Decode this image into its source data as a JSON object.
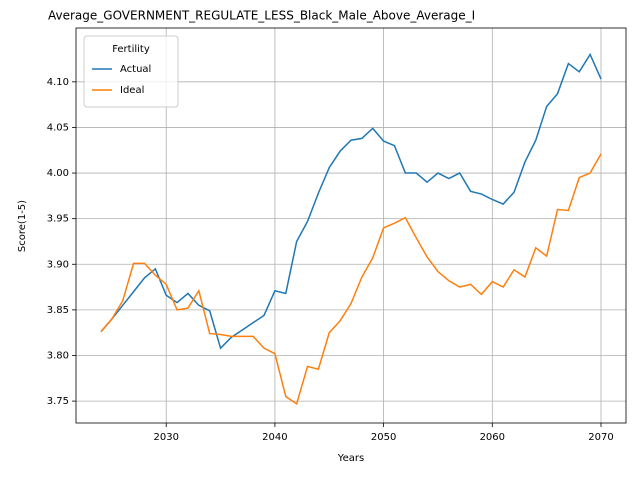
{
  "chart_data": {
    "type": "line",
    "title": "Average_GOVERNMENT_REGULATE_LESS_Black_Male_Above_Average_I",
    "xlabel": "Years",
    "ylabel": "Score(1-5)",
    "x": [
      2024,
      2025,
      2026,
      2027,
      2028,
      2029,
      2030,
      2031,
      2032,
      2033,
      2034,
      2035,
      2036,
      2037,
      2038,
      2039,
      2040,
      2041,
      2042,
      2043,
      2044,
      2045,
      2046,
      2047,
      2048,
      2049,
      2050,
      2051,
      2052,
      2053,
      2054,
      2055,
      2056,
      2057,
      2058,
      2059,
      2060,
      2061,
      2062,
      2063,
      2064,
      2065,
      2066,
      2067,
      2068,
      2069,
      2070
    ],
    "series": [
      {
        "name": "Actual",
        "color": "#1f77b4",
        "values": [
          3.826,
          3.84,
          3.855,
          3.87,
          3.885,
          3.895,
          3.866,
          3.858,
          3.868,
          3.855,
          3.849,
          3.808,
          3.82,
          3.828,
          3.836,
          3.844,
          3.871,
          3.868,
          3.925,
          3.947,
          3.978,
          4.006,
          4.024,
          4.036,
          4.038,
          4.049,
          4.035,
          4.03,
          4.0,
          4.0,
          3.99,
          4.0,
          3.994,
          4.0,
          3.98,
          3.977,
          3.971,
          3.966,
          3.979,
          4.012,
          4.036,
          4.073,
          4.087,
          4.12,
          4.111,
          4.13,
          4.103
        ]
      },
      {
        "name": "Ideal",
        "color": "#ff7f0e",
        "values": [
          3.826,
          3.84,
          3.86,
          3.901,
          3.901,
          3.888,
          3.878,
          3.85,
          3.852,
          3.871,
          3.824,
          3.823,
          3.821,
          3.821,
          3.821,
          3.808,
          3.802,
          3.755,
          3.747,
          3.788,
          3.785,
          3.825,
          3.838,
          3.857,
          3.886,
          3.907,
          3.94,
          3.945,
          3.951,
          3.929,
          3.908,
          3.892,
          3.882,
          3.875,
          3.878,
          3.867,
          3.881,
          3.875,
          3.894,
          3.886,
          3.918,
          3.909,
          3.96,
          3.959,
          3.995,
          4.0,
          4.021
        ]
      }
    ],
    "legend_title": "Fertility",
    "legend": "upper left",
    "grid": true,
    "xlim": [
      2021.7,
      2072.3
    ],
    "xticks": [
      2030,
      2040,
      2050,
      2060,
      2070
    ],
    "ylim": [
      3.726,
      4.159
    ],
    "yticks": [
      3.75,
      {
        "value": 3.8,
        "label": "3.80"
      },
      3.85,
      {
        "value": 3.9,
        "label": "3.90"
      },
      3.95,
      {
        "value": 4.0,
        "label": "4.00"
      },
      4.05,
      {
        "value": 4.1,
        "label": "4.10"
      }
    ]
  }
}
